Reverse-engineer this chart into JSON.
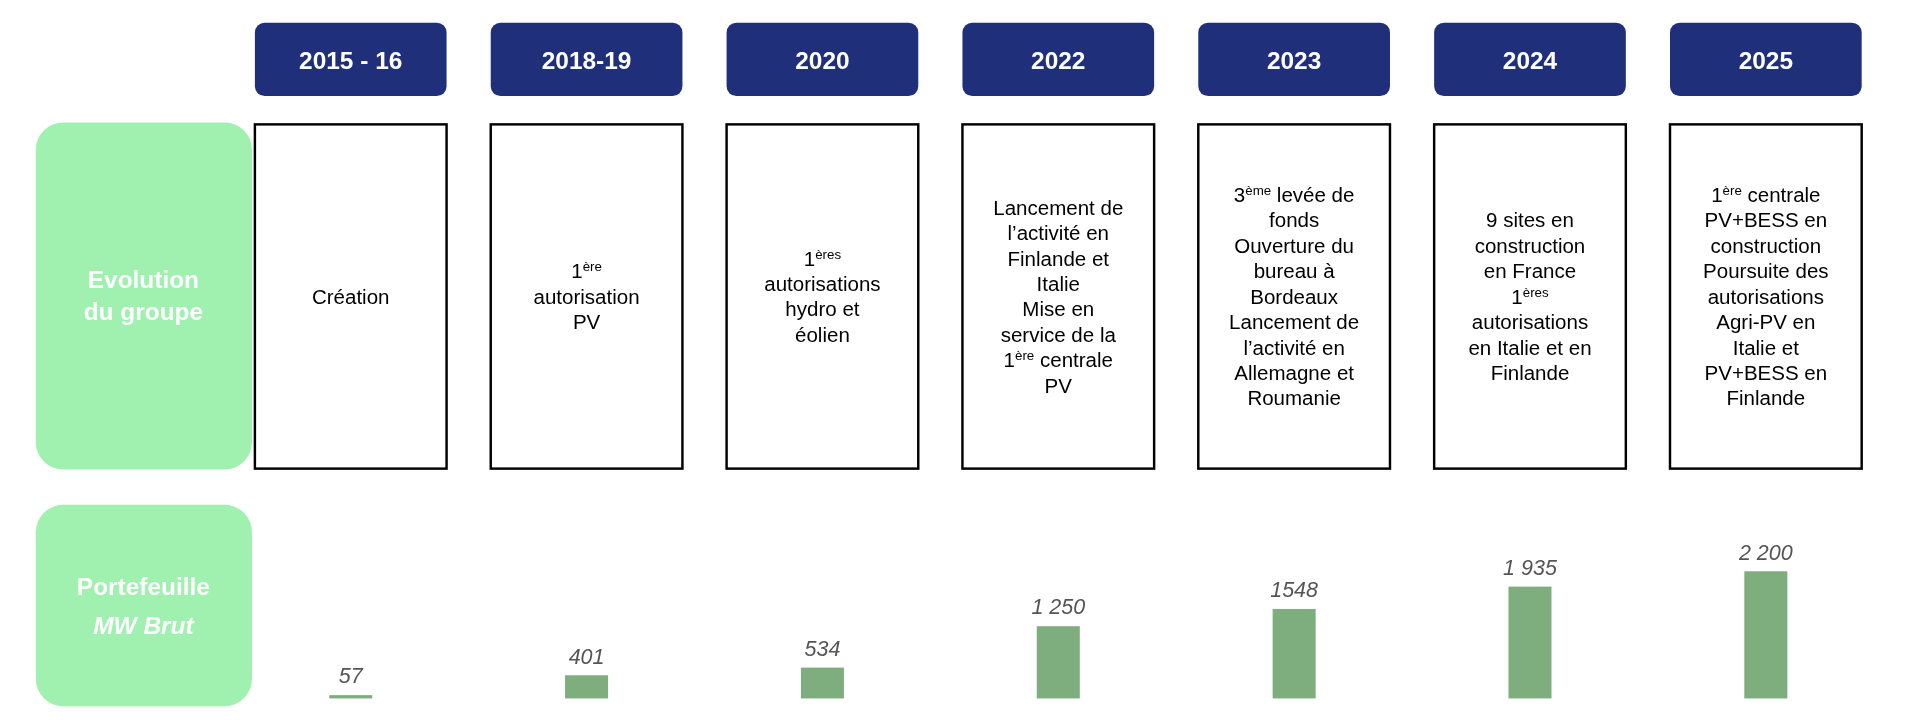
{
  "chart_data": {
    "type": "bar",
    "categories": [
      "2015 - 16",
      "2018-19",
      "2020",
      "2022",
      "2023",
      "2024",
      "2025"
    ],
    "values": [
      57,
      401,
      534,
      1250,
      1548,
      1935,
      2200
    ],
    "value_labels": [
      "57",
      "401",
      "534",
      "1 250",
      "1548",
      "1 935",
      "2 200"
    ],
    "color": "#7fae7e",
    "ylabel": "Portefeuille\nMW Brut",
    "annotations": [
      "Evolution\ndu groupe",
      "Création",
      "1$^{ère}$\nautorisation\nPV",
      "1$^{ères}$\nautorisations\nhydro et\néolien",
      "Lancement de\nl’activité en\nFinlande et\nItalie\nMise en\nservice de la\n1$^{ère}$ centrale\nPV",
      "3$^{ème}$ levée de\nfonds\nOuverture du\nbureau à\nBordeaux\nLancement de\nl’activité en\nAllemagne et\nRoumanie",
      "9 sites en\nconstruction\nen France\n1$^{ères}$\nautorisations\nen Italie et en\nFinlande",
      "1$^{ère}$ centrale\nPV+BESS en\nconstruction\nPoursuite des\nautorisations\nAgri-PV en\nItalie et\nPV+BESS en\nFinlande"
    ]
  }
}
